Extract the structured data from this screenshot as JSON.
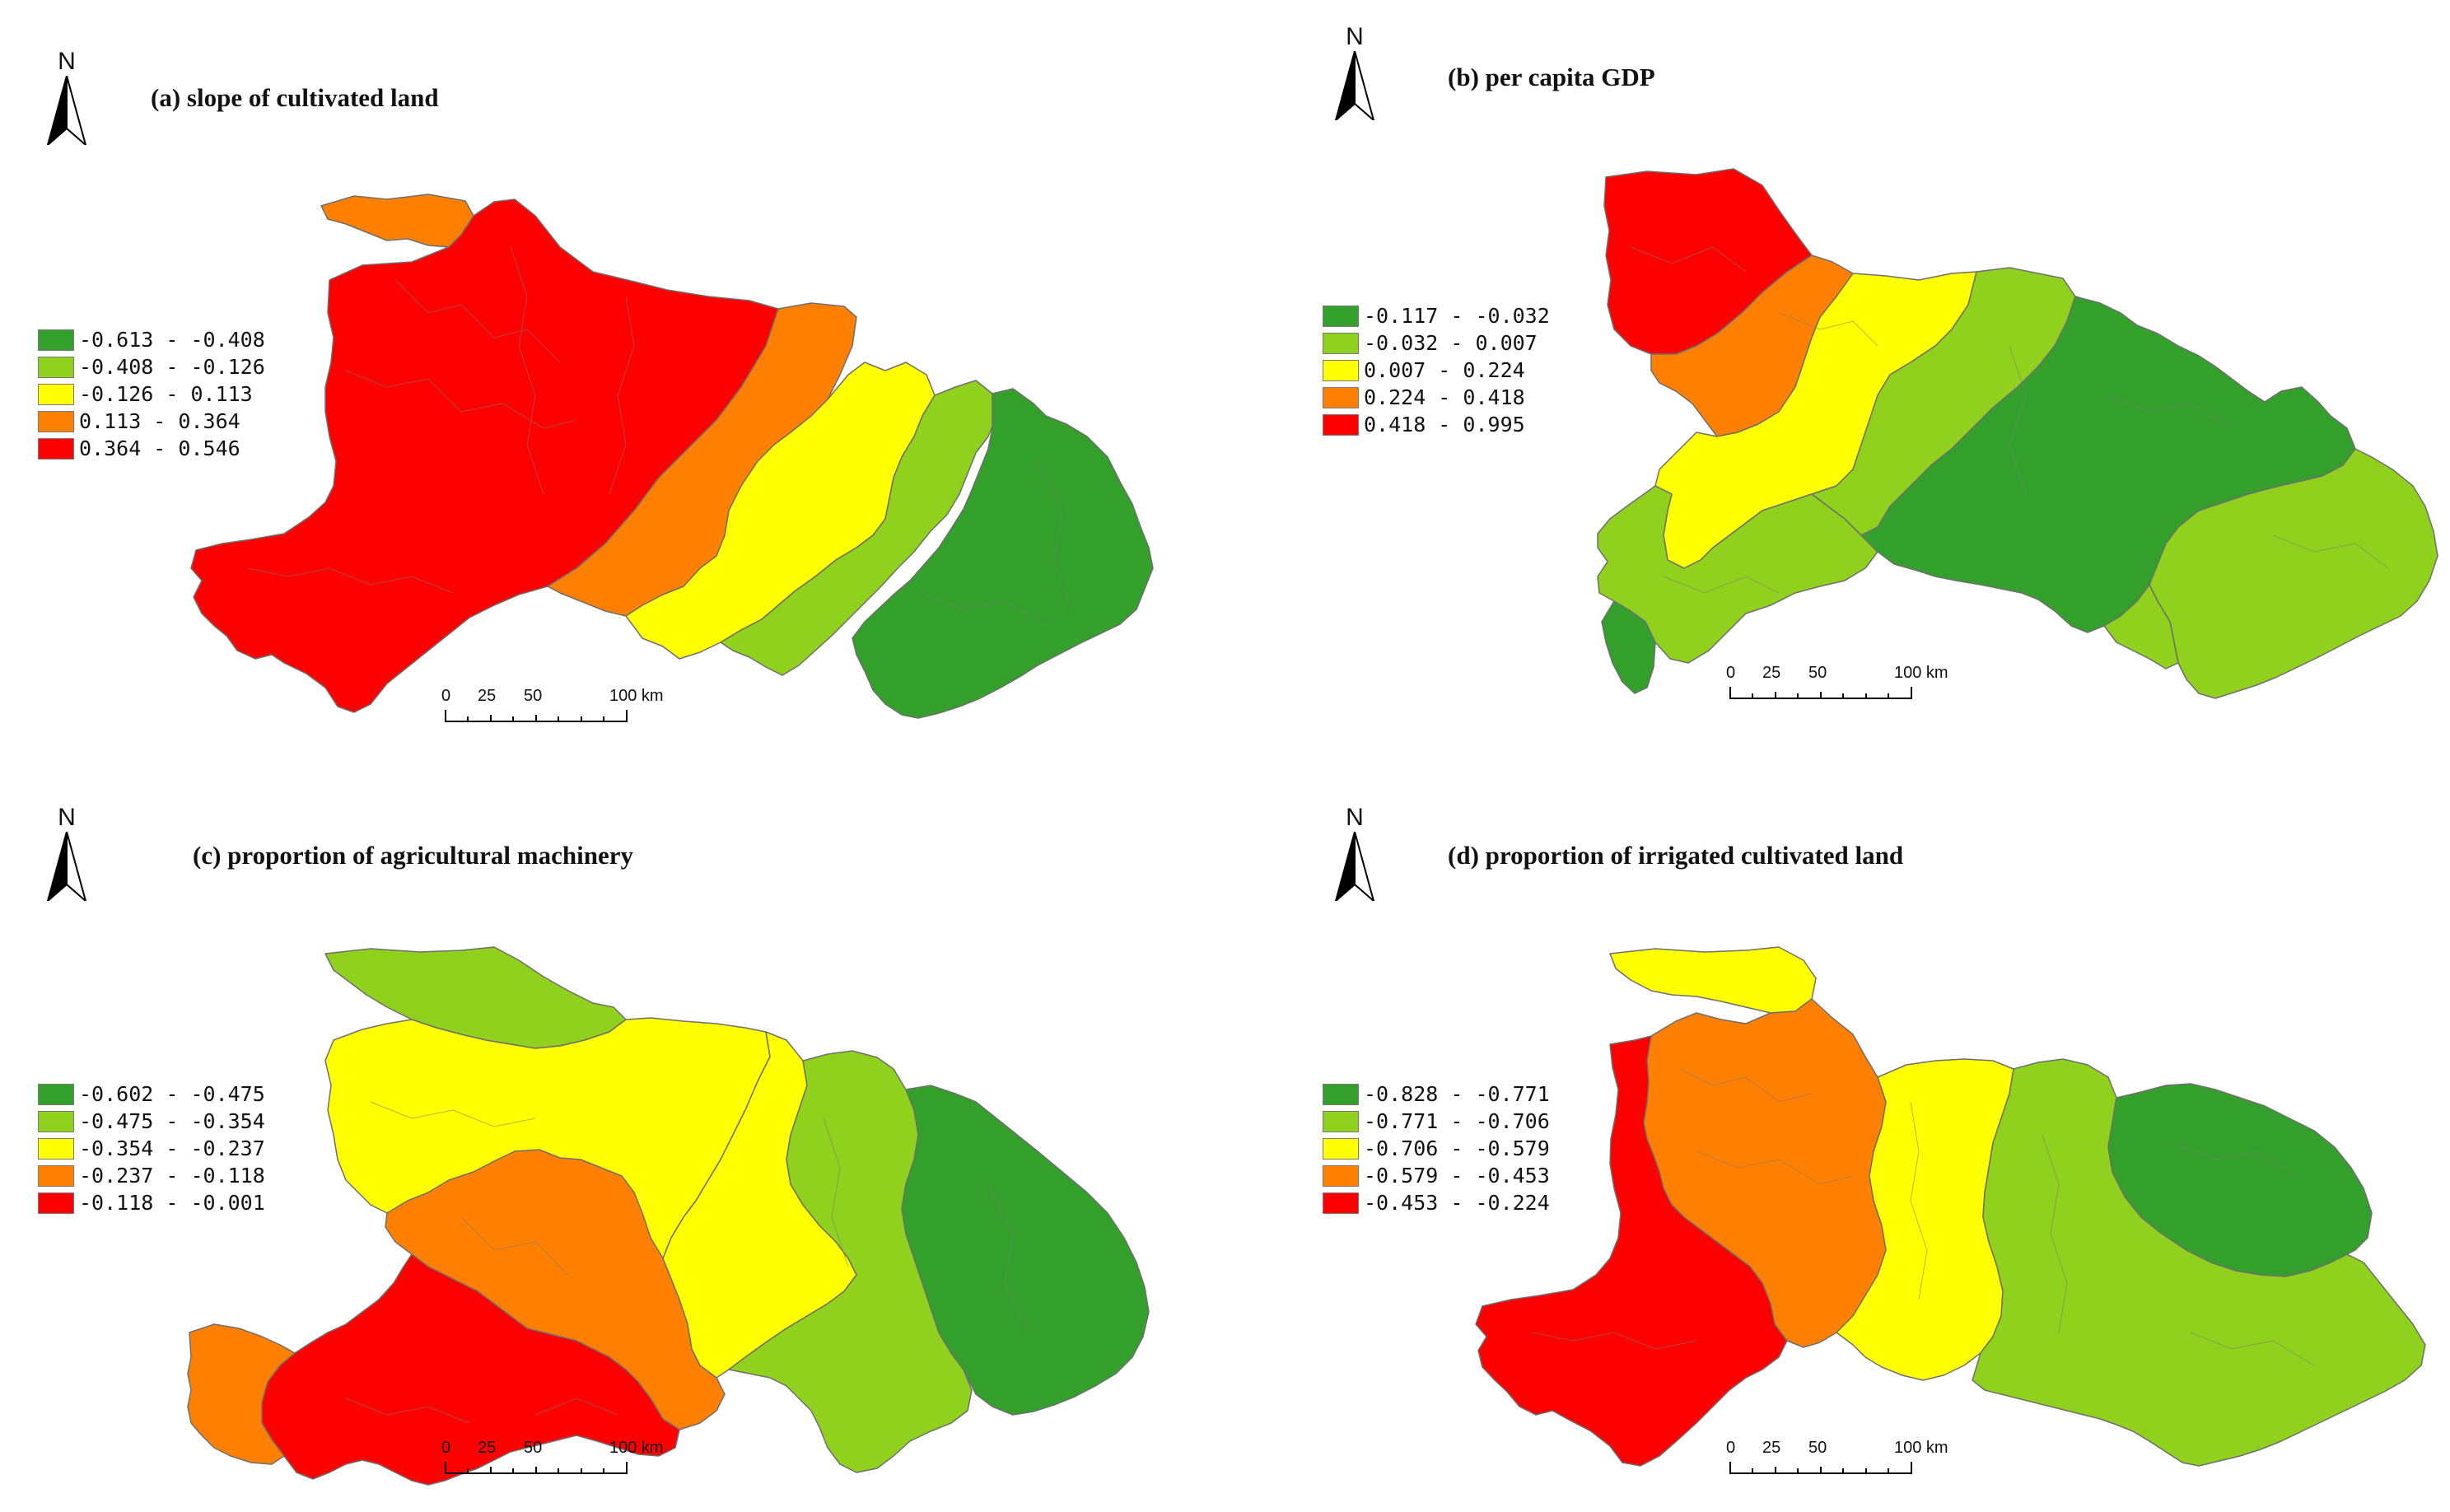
{
  "panels": [
    {
      "id": "a",
      "title": "(a) slope of cultivated land",
      "north_label": "N",
      "legend": [
        {
          "label": "-0.613 - -0.408",
          "color": "#33a02c"
        },
        {
          "label": "-0.408 - -0.126",
          "color": "#8fd11d"
        },
        {
          "label": "-0.126 - 0.113",
          "color": "#ffff00"
        },
        {
          "label": "0.113 - 0.364",
          "color": "#ff8000"
        },
        {
          "label": "0.364 - 0.546",
          "color": "#ff0000"
        }
      ],
      "scale": {
        "ticks": [
          "0",
          "25",
          "50",
          "100 km"
        ]
      }
    },
    {
      "id": "b",
      "title": "(b) per capita GDP",
      "north_label": "N",
      "legend": [
        {
          "label": "-0.117 - -0.032",
          "color": "#33a02c"
        },
        {
          "label": "-0.032 - 0.007",
          "color": "#8fd11d"
        },
        {
          "label": "0.007 - 0.224",
          "color": "#ffff00"
        },
        {
          "label": "0.224 - 0.418",
          "color": "#ff8000"
        },
        {
          "label": "0.418 - 0.995",
          "color": "#ff0000"
        }
      ],
      "scale": {
        "ticks": [
          "0",
          "25",
          "50",
          "100 km"
        ]
      }
    },
    {
      "id": "c",
      "title": "(c) proportion of agricultural machinery",
      "north_label": "N",
      "legend": [
        {
          "label": "-0.602 - -0.475",
          "color": "#33a02c"
        },
        {
          "label": "-0.475 - -0.354",
          "color": "#8fd11d"
        },
        {
          "label": "-0.354 - -0.237",
          "color": "#ffff00"
        },
        {
          "label": "-0.237 - -0.118",
          "color": "#ff8000"
        },
        {
          "label": "-0.118 - -0.001",
          "color": "#ff0000"
        }
      ],
      "scale": {
        "ticks": [
          "0",
          "25",
          "50",
          "100 km"
        ]
      }
    },
    {
      "id": "d",
      "title": "(d) proportion of irrigated cultivated land",
      "north_label": "N",
      "legend": [
        {
          "label": "-0.828 - -0.771",
          "color": "#33a02c"
        },
        {
          "label": "-0.771 - -0.706",
          "color": "#8fd11d"
        },
        {
          "label": "-0.706 - -0.579",
          "color": "#ffff00"
        },
        {
          "label": "-0.579 - -0.453",
          "color": "#ff8000"
        },
        {
          "label": "-0.453 - -0.224",
          "color": "#ff0000"
        }
      ],
      "scale": {
        "ticks": [
          "0",
          "25",
          "50",
          "100 km"
        ]
      }
    }
  ]
}
